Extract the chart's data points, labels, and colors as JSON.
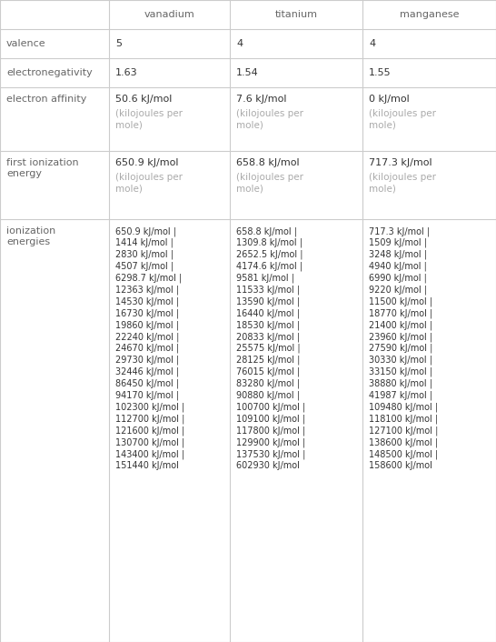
{
  "headers": [
    "",
    "vanadium",
    "titanium",
    "manganese"
  ],
  "row_labels": [
    "valence",
    "electronegativity",
    "electron affinity",
    "first ionization\nenergy",
    "ionization\nenergies"
  ],
  "valence": [
    "5",
    "4",
    "4"
  ],
  "electronegativity": [
    "1.63",
    "1.54",
    "1.55"
  ],
  "electron_affinity_main": [
    "50.6 kJ/mol",
    "7.6 kJ/mol",
    "0 kJ/mol"
  ],
  "electron_affinity_sub": [
    "(kilojoules per\nmole)",
    "(kilojoules per\nmole)",
    "(kilojoules per\nmole)"
  ],
  "first_ie_main": [
    "650.9 kJ/mol",
    "658.8 kJ/mol",
    "717.3 kJ/mol"
  ],
  "first_ie_sub": [
    "(kilojoules per\nmole)",
    "(kilojoules per\nmole)",
    "(kilojoules per\nmole)"
  ],
  "ionization_energies": [
    [
      "650.9 kJ/mol",
      "1414 kJ/mol",
      "2830 kJ/mol",
      "4507 kJ/mol",
      "6298.7 kJ/mol",
      "12363 kJ/mol",
      "14530 kJ/mol",
      "16730 kJ/mol",
      "19860 kJ/mol",
      "22240 kJ/mol",
      "24670 kJ/mol",
      "29730 kJ/mol",
      "32446 kJ/mol",
      "86450 kJ/mol",
      "94170 kJ/mol",
      "102300 kJ/mol",
      "112700 kJ/mol",
      "121600 kJ/mol",
      "130700 kJ/mol",
      "143400 kJ/mol",
      "151440 kJ/mol"
    ],
    [
      "658.8 kJ/mol",
      "1309.8 kJ/mol",
      "2652.5 kJ/mol",
      "4174.6 kJ/mol",
      "9581 kJ/mol",
      "11533 kJ/mol",
      "13590 kJ/mol",
      "16440 kJ/mol",
      "18530 kJ/mol",
      "20833 kJ/mol",
      "25575 kJ/mol",
      "28125 kJ/mol",
      "76015 kJ/mol",
      "83280 kJ/mol",
      "90880 kJ/mol",
      "100700 kJ/mol",
      "109100 kJ/mol",
      "117800 kJ/mol",
      "129900 kJ/mol",
      "137530 kJ/mol",
      "602930 kJ/mol"
    ],
    [
      "717.3 kJ/mol",
      "1509 kJ/mol",
      "3248 kJ/mol",
      "4940 kJ/mol",
      "6990 kJ/mol",
      "9220 kJ/mol",
      "11500 kJ/mol",
      "18770 kJ/mol",
      "21400 kJ/mol",
      "23960 kJ/mol",
      "27590 kJ/mol",
      "30330 kJ/mol",
      "33150 kJ/mol",
      "38880 kJ/mol",
      "41987 kJ/mol",
      "109480 kJ/mol",
      "118100 kJ/mol",
      "127100 kJ/mol",
      "138600 kJ/mol",
      "148500 kJ/mol",
      "158600 kJ/mol"
    ]
  ],
  "header_text_color": "#666666",
  "label_color": "#666666",
  "value_color": "#333333",
  "sub_color": "#aaaaaa",
  "line_color": "#cccccc",
  "bg_color": "#ffffff",
  "fig_width": 5.46,
  "fig_height": 7.06,
  "dpi": 100
}
